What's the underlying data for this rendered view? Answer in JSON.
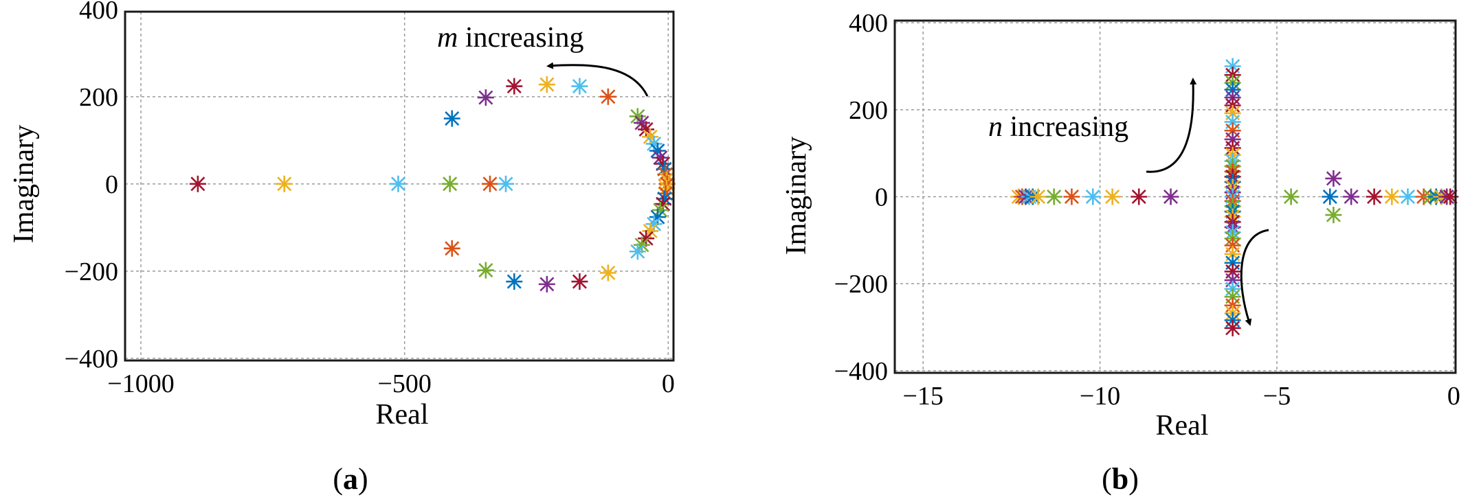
{
  "chart_data": [
    {
      "type": "scatter",
      "subfigure_label": [
        "(",
        "a",
        ")"
      ],
      "xlabel": "Real",
      "ylabel": "Imaginary",
      "xlim": [
        -1030,
        10
      ],
      "ylim": [
        -405,
        395
      ],
      "xticks": [
        -1000,
        -500,
        0
      ],
      "xtick_labels": [
        "−1000",
        "−500",
        "0"
      ],
      "yticks": [
        400,
        200,
        0,
        -200,
        -400
      ],
      "ytick_labels": [
        "400",
        "200",
        "0",
        "−200",
        "−400"
      ],
      "grid": true,
      "annotation": {
        "italic": "m",
        "text": " increasing"
      },
      "marker": "asterisk",
      "points": [
        {
          "x": -892,
          "y": 0,
          "color": "#a2142f"
        },
        {
          "x": -728,
          "y": 0,
          "color": "#edb120"
        },
        {
          "x": -512,
          "y": 0,
          "color": "#4dbeee"
        },
        {
          "x": -414,
          "y": 0,
          "color": "#77ac30"
        },
        {
          "x": -338,
          "y": 0,
          "color": "#d95319"
        },
        {
          "x": -308,
          "y": 0,
          "color": "#4dbeee"
        },
        {
          "x": -410,
          "y": 150,
          "color": "#0072bd"
        },
        {
          "x": -346,
          "y": 198,
          "color": "#7e2f8e"
        },
        {
          "x": -292,
          "y": 224,
          "color": "#a2142f"
        },
        {
          "x": -230,
          "y": 228,
          "color": "#edb120"
        },
        {
          "x": -168,
          "y": 224,
          "color": "#4dbeee"
        },
        {
          "x": -114,
          "y": 200,
          "color": "#d95319"
        },
        {
          "x": -58,
          "y": 155,
          "color": "#77ac30"
        },
        {
          "x": -50,
          "y": 140,
          "color": "#7e2f8e"
        },
        {
          "x": -42,
          "y": 125,
          "color": "#a2142f"
        },
        {
          "x": -34,
          "y": 108,
          "color": "#edb120"
        },
        {
          "x": -27,
          "y": 92,
          "color": "#4dbeee"
        },
        {
          "x": -20,
          "y": 76,
          "color": "#0072bd"
        },
        {
          "x": -15,
          "y": 60,
          "color": "#7e2f8e"
        },
        {
          "x": -10,
          "y": 46,
          "color": "#a2142f"
        },
        {
          "x": -7,
          "y": 34,
          "color": "#0072bd"
        },
        {
          "x": -5,
          "y": 22,
          "color": "#d95319"
        },
        {
          "x": -3,
          "y": 10,
          "color": "#edb120"
        },
        {
          "x": -2,
          "y": 0,
          "color": "#d95319"
        },
        {
          "x": -3,
          "y": -10,
          "color": "#edb120"
        },
        {
          "x": -5,
          "y": -22,
          "color": "#d95319"
        },
        {
          "x": -7,
          "y": -34,
          "color": "#0072bd"
        },
        {
          "x": -10,
          "y": -46,
          "color": "#a2142f"
        },
        {
          "x": -15,
          "y": -60,
          "color": "#77ac30"
        },
        {
          "x": -20,
          "y": -76,
          "color": "#0072bd"
        },
        {
          "x": -27,
          "y": -92,
          "color": "#4dbeee"
        },
        {
          "x": -34,
          "y": -108,
          "color": "#edb120"
        },
        {
          "x": -42,
          "y": -125,
          "color": "#a2142f"
        },
        {
          "x": -50,
          "y": -140,
          "color": "#77ac30"
        },
        {
          "x": -58,
          "y": -155,
          "color": "#4dbeee"
        },
        {
          "x": -410,
          "y": -148,
          "color": "#d95319"
        },
        {
          "x": -346,
          "y": -198,
          "color": "#77ac30"
        },
        {
          "x": -292,
          "y": -224,
          "color": "#0072bd"
        },
        {
          "x": -230,
          "y": -230,
          "color": "#7e2f8e"
        },
        {
          "x": -168,
          "y": -224,
          "color": "#a2142f"
        },
        {
          "x": -114,
          "y": -204,
          "color": "#edb120"
        }
      ]
    },
    {
      "type": "scatter",
      "subfigure_label": [
        "(",
        "b",
        ")"
      ],
      "xlabel": "Real",
      "ylabel": "Imaginary",
      "xlim": [
        -15.8,
        0.05
      ],
      "ylim": [
        -405,
        405
      ],
      "xticks": [
        -15,
        -10,
        -5,
        0
      ],
      "xtick_labels": [
        "−15",
        "−10",
        "−5",
        "0"
      ],
      "yticks": [
        400,
        200,
        0,
        -200,
        -400
      ],
      "ytick_labels": [
        "400",
        "200",
        "0",
        "−200",
        "−400"
      ],
      "grid": true,
      "annotation": {
        "italic": "n",
        "text": " increasing"
      },
      "marker": "asterisk",
      "points": [
        {
          "x": -12.3,
          "y": 0,
          "color": "#edb120"
        },
        {
          "x": -12.2,
          "y": 0,
          "color": "#d95319"
        },
        {
          "x": -12.1,
          "y": 0,
          "color": "#7e2f8e"
        },
        {
          "x": -12.0,
          "y": 0,
          "color": "#4dbeee"
        },
        {
          "x": -11.9,
          "y": 0,
          "color": "#0072bd"
        },
        {
          "x": -11.75,
          "y": 0,
          "color": "#edb120"
        },
        {
          "x": -11.3,
          "y": 0,
          "color": "#77ac30"
        },
        {
          "x": -10.8,
          "y": 0,
          "color": "#d95319"
        },
        {
          "x": -10.2,
          "y": 0,
          "color": "#4dbeee"
        },
        {
          "x": -9.65,
          "y": 0,
          "color": "#edb120"
        },
        {
          "x": -8.9,
          "y": 0,
          "color": "#a2142f"
        },
        {
          "x": -8.0,
          "y": 0,
          "color": "#7e2f8e"
        },
        {
          "x": -4.6,
          "y": 0,
          "color": "#77ac30"
        },
        {
          "x": -3.5,
          "y": 0,
          "color": "#0072bd"
        },
        {
          "x": -3.4,
          "y": 42,
          "color": "#7e2f8e"
        },
        {
          "x": -3.4,
          "y": -42,
          "color": "#77ac30"
        },
        {
          "x": -2.9,
          "y": 0,
          "color": "#7e2f8e"
        },
        {
          "x": -2.25,
          "y": 0,
          "color": "#a2142f"
        },
        {
          "x": -1.75,
          "y": 0,
          "color": "#edb120"
        },
        {
          "x": -1.3,
          "y": 0,
          "color": "#4dbeee"
        },
        {
          "x": -0.85,
          "y": 0,
          "color": "#d95319"
        },
        {
          "x": -0.65,
          "y": 0,
          "color": "#77ac30"
        },
        {
          "x": -0.5,
          "y": 0,
          "color": "#0072bd"
        },
        {
          "x": -0.35,
          "y": 0,
          "color": "#edb120"
        },
        {
          "x": -0.2,
          "y": 0,
          "color": "#7e2f8e"
        },
        {
          "x": -0.1,
          "y": 0,
          "color": "#a2142f"
        },
        {
          "x": -6.25,
          "y": 300,
          "color": "#4dbeee"
        },
        {
          "x": -6.25,
          "y": 280,
          "color": "#a2142f"
        },
        {
          "x": -6.25,
          "y": 262,
          "color": "#77ac30"
        },
        {
          "x": -6.25,
          "y": 246,
          "color": "#0072bd"
        },
        {
          "x": -6.25,
          "y": 228,
          "color": "#7e2f8e"
        },
        {
          "x": -6.25,
          "y": 210,
          "color": "#a2142f"
        },
        {
          "x": -6.25,
          "y": 192,
          "color": "#edb120"
        },
        {
          "x": -6.25,
          "y": 172,
          "color": "#4dbeee"
        },
        {
          "x": -6.25,
          "y": 152,
          "color": "#d95319"
        },
        {
          "x": -6.25,
          "y": 132,
          "color": "#7e2f8e"
        },
        {
          "x": -6.25,
          "y": 112,
          "color": "#a2142f"
        },
        {
          "x": -6.25,
          "y": 96,
          "color": "#edb120"
        },
        {
          "x": -6.25,
          "y": 82,
          "color": "#4dbeee"
        },
        {
          "x": -6.25,
          "y": 70,
          "color": "#77ac30"
        },
        {
          "x": -6.25,
          "y": 58,
          "color": "#d95319"
        },
        {
          "x": -6.25,
          "y": 46,
          "color": "#a2142f"
        },
        {
          "x": -6.25,
          "y": 34,
          "color": "#0072bd"
        },
        {
          "x": -6.25,
          "y": 22,
          "color": "#edb120"
        },
        {
          "x": -6.25,
          "y": 10,
          "color": "#7e2f8e"
        },
        {
          "x": -6.25,
          "y": 0,
          "color": "#4dbeee"
        },
        {
          "x": -6.25,
          "y": -10,
          "color": "#d95319"
        },
        {
          "x": -6.25,
          "y": -22,
          "color": "#77ac30"
        },
        {
          "x": -6.25,
          "y": -34,
          "color": "#0072bd"
        },
        {
          "x": -6.25,
          "y": -46,
          "color": "#edb120"
        },
        {
          "x": -6.25,
          "y": -58,
          "color": "#a2142f"
        },
        {
          "x": -6.25,
          "y": -70,
          "color": "#7e2f8e"
        },
        {
          "x": -6.25,
          "y": -82,
          "color": "#4dbeee"
        },
        {
          "x": -6.25,
          "y": -96,
          "color": "#77ac30"
        },
        {
          "x": -6.25,
          "y": -112,
          "color": "#d95319"
        },
        {
          "x": -6.25,
          "y": -132,
          "color": "#edb120"
        },
        {
          "x": -6.25,
          "y": -152,
          "color": "#0072bd"
        },
        {
          "x": -6.25,
          "y": -172,
          "color": "#a2142f"
        },
        {
          "x": -6.25,
          "y": -192,
          "color": "#7e2f8e"
        },
        {
          "x": -6.25,
          "y": -212,
          "color": "#4dbeee"
        },
        {
          "x": -6.25,
          "y": -230,
          "color": "#77ac30"
        },
        {
          "x": -6.25,
          "y": -250,
          "color": "#d95319"
        },
        {
          "x": -6.25,
          "y": -268,
          "color": "#edb120"
        },
        {
          "x": -6.25,
          "y": -284,
          "color": "#0072bd"
        },
        {
          "x": -6.25,
          "y": -302,
          "color": "#a2142f"
        }
      ]
    }
  ]
}
